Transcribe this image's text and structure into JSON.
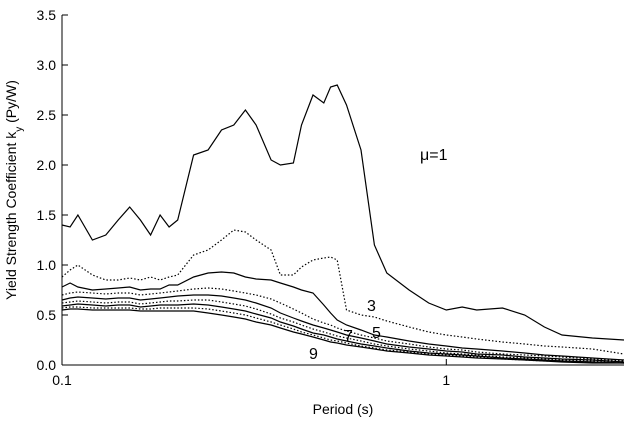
{
  "chart_data": {
    "type": "line",
    "y_label": [
      "Yield Strength Coefficient k",
      "y",
      " (Py/W)"
    ],
    "x_label": "Period (s)",
    "annotations": [
      "μ=1",
      "3",
      "5",
      "7",
      "9"
    ],
    "log_x": true,
    "xlim": [
      0.1,
      2.9
    ],
    "xticks": [
      0.1,
      1
    ],
    "ylim": [
      0,
      3.5
    ],
    "yticks": [
      {
        "value": 0,
        "label": "0.0"
      },
      0.5,
      {
        "value": 1,
        "label": "1.0"
      },
      1.5,
      {
        "value": 2,
        "label": "2.0"
      },
      2.5,
      {
        "value": 3,
        "label": "3.0"
      },
      3.5
    ],
    "x": [
      0.1,
      0.105,
      0.11,
      0.12,
      0.13,
      0.14,
      0.15,
      0.16,
      0.17,
      0.18,
      0.19,
      0.2,
      0.22,
      0.24,
      0.26,
      0.28,
      0.3,
      0.32,
      0.35,
      0.37,
      0.4,
      0.42,
      0.45,
      0.48,
      0.5,
      0.52,
      0.55,
      0.6,
      0.65,
      0.7,
      0.8,
      0.9,
      1.0,
      1.1,
      1.2,
      1.4,
      1.6,
      1.8,
      2.0,
      2.4,
      2.9
    ],
    "series": [
      {
        "color": "#000000",
        "line_style": "solid",
        "values": [
          1.4,
          1.38,
          1.5,
          1.25,
          1.3,
          1.45,
          1.58,
          1.45,
          1.3,
          1.5,
          1.38,
          1.45,
          2.1,
          2.15,
          2.35,
          2.4,
          2.55,
          2.4,
          2.05,
          2.0,
          2.02,
          2.4,
          2.7,
          2.62,
          2.78,
          2.8,
          2.6,
          2.15,
          1.2,
          0.92,
          0.75,
          0.62,
          0.55,
          0.58,
          0.55,
          0.57,
          0.5,
          0.38,
          0.3,
          0.27,
          0.25
        ]
      },
      {
        "color": "#000000",
        "line_style": "dotted",
        "values": [
          0.88,
          0.95,
          1.0,
          0.9,
          0.85,
          0.85,
          0.87,
          0.85,
          0.88,
          0.85,
          0.88,
          0.9,
          1.1,
          1.15,
          1.25,
          1.35,
          1.33,
          1.25,
          1.15,
          0.9,
          0.9,
          0.98,
          1.05,
          1.07,
          1.08,
          1.05,
          0.55,
          0.5,
          0.48,
          0.44,
          0.38,
          0.33,
          0.3,
          0.28,
          0.26,
          0.23,
          0.21,
          0.19,
          0.18,
          0.16,
          0.11
        ]
      },
      {
        "color": "#000000",
        "line_style": "solid",
        "values": [
          0.78,
          0.82,
          0.78,
          0.75,
          0.76,
          0.77,
          0.78,
          0.75,
          0.76,
          0.76,
          0.8,
          0.8,
          0.88,
          0.92,
          0.93,
          0.92,
          0.88,
          0.86,
          0.85,
          0.82,
          0.78,
          0.75,
          0.72,
          0.6,
          0.52,
          0.45,
          0.4,
          0.35,
          0.3,
          0.28,
          0.24,
          0.21,
          0.19,
          0.17,
          0.16,
          0.14,
          0.12,
          0.1,
          0.09,
          0.07,
          0.05
        ]
      },
      {
        "color": "#000000",
        "line_style": "dotted",
        "values": [
          0.7,
          0.72,
          0.73,
          0.72,
          0.71,
          0.72,
          0.72,
          0.7,
          0.71,
          0.72,
          0.73,
          0.74,
          0.76,
          0.77,
          0.76,
          0.74,
          0.72,
          0.7,
          0.66,
          0.62,
          0.56,
          0.52,
          0.46,
          0.42,
          0.4,
          0.37,
          0.34,
          0.3,
          0.27,
          0.24,
          0.21,
          0.18,
          0.16,
          0.15,
          0.13,
          0.11,
          0.1,
          0.09,
          0.08,
          0.06,
          0.04
        ]
      },
      {
        "color": "#000000",
        "line_style": "solid",
        "values": [
          0.65,
          0.67,
          0.68,
          0.67,
          0.66,
          0.67,
          0.67,
          0.65,
          0.66,
          0.67,
          0.68,
          0.69,
          0.7,
          0.7,
          0.69,
          0.67,
          0.65,
          0.62,
          0.57,
          0.52,
          0.47,
          0.44,
          0.4,
          0.37,
          0.35,
          0.33,
          0.3,
          0.27,
          0.24,
          0.21,
          0.18,
          0.16,
          0.14,
          0.13,
          0.11,
          0.1,
          0.08,
          0.07,
          0.06,
          0.05,
          0.03
        ]
      },
      {
        "color": "#000000",
        "line_style": "dotted",
        "values": [
          0.62,
          0.63,
          0.64,
          0.63,
          0.62,
          0.63,
          0.63,
          0.61,
          0.62,
          0.63,
          0.64,
          0.64,
          0.65,
          0.65,
          0.63,
          0.61,
          0.59,
          0.56,
          0.51,
          0.47,
          0.43,
          0.4,
          0.36,
          0.33,
          0.31,
          0.29,
          0.27,
          0.24,
          0.21,
          0.19,
          0.16,
          0.14,
          0.12,
          0.11,
          0.1,
          0.08,
          0.07,
          0.06,
          0.05,
          0.04,
          0.03
        ]
      },
      {
        "color": "#000000",
        "line_style": "solid",
        "values": [
          0.59,
          0.6,
          0.61,
          0.6,
          0.59,
          0.6,
          0.6,
          0.58,
          0.59,
          0.6,
          0.6,
          0.6,
          0.61,
          0.6,
          0.58,
          0.56,
          0.54,
          0.51,
          0.47,
          0.43,
          0.39,
          0.36,
          0.32,
          0.3,
          0.28,
          0.26,
          0.24,
          0.21,
          0.19,
          0.17,
          0.14,
          0.12,
          0.11,
          0.1,
          0.09,
          0.07,
          0.06,
          0.05,
          0.04,
          0.03,
          0.02
        ]
      },
      {
        "color": "#000000",
        "line_style": "dotted",
        "values": [
          0.57,
          0.58,
          0.58,
          0.57,
          0.57,
          0.57,
          0.57,
          0.56,
          0.56,
          0.57,
          0.57,
          0.57,
          0.57,
          0.56,
          0.54,
          0.52,
          0.5,
          0.47,
          0.43,
          0.4,
          0.36,
          0.33,
          0.3,
          0.27,
          0.25,
          0.24,
          0.22,
          0.19,
          0.17,
          0.15,
          0.13,
          0.11,
          0.1,
          0.09,
          0.08,
          0.06,
          0.05,
          0.04,
          0.04,
          0.03,
          0.02
        ]
      },
      {
        "color": "#000000",
        "line_style": "solid",
        "values": [
          0.55,
          0.56,
          0.56,
          0.55,
          0.55,
          0.55,
          0.55,
          0.54,
          0.54,
          0.54,
          0.54,
          0.54,
          0.54,
          0.52,
          0.5,
          0.48,
          0.46,
          0.43,
          0.4,
          0.37,
          0.33,
          0.31,
          0.28,
          0.25,
          0.23,
          0.22,
          0.2,
          0.18,
          0.16,
          0.14,
          0.12,
          0.1,
          0.09,
          0.08,
          0.07,
          0.06,
          0.05,
          0.04,
          0.03,
          0.02,
          0.02
        ]
      }
    ]
  }
}
